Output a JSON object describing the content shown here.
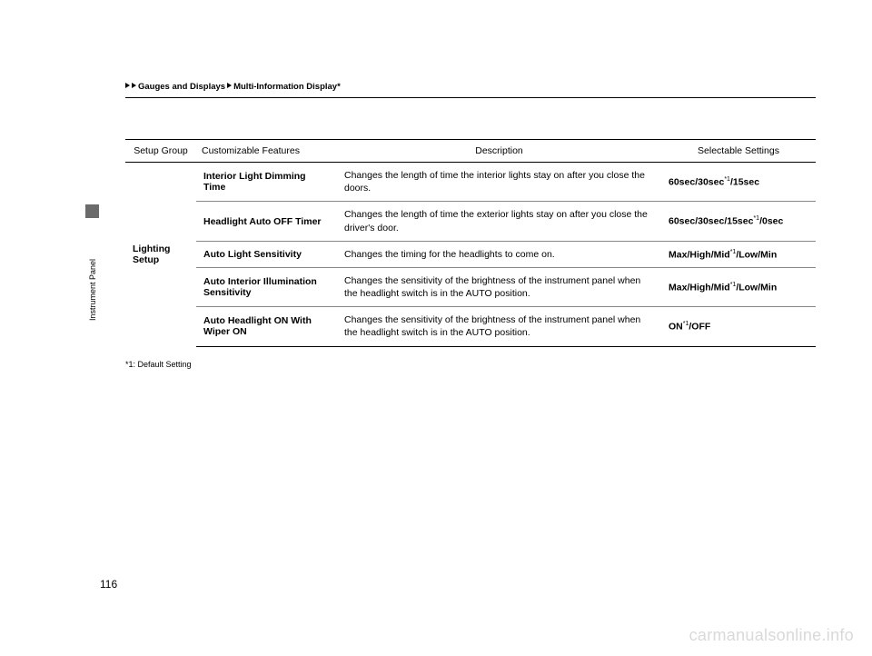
{
  "breadcrumb": {
    "part1": "Gauges and Displays",
    "part2": "Multi-Information Display",
    "star": "*"
  },
  "sideTab": {
    "label": "Instrument Panel"
  },
  "table": {
    "headers": {
      "group": "Setup Group",
      "feature": "Customizable Features",
      "description": "Description",
      "settings": "Selectable Settings"
    },
    "group": "Lighting Setup",
    "rows": [
      {
        "feature": "Interior Light Dimming Time",
        "description": "Changes the length of time the interior lights stay on after you close the doors.",
        "settings_parts": [
          "60sec",
          "/",
          "30sec",
          "*1",
          "/",
          "15sec"
        ]
      },
      {
        "feature": "Headlight Auto OFF Timer",
        "description": "Changes the length of time the exterior lights stay on after you close the driver's door.",
        "settings_parts": [
          "60sec",
          "/",
          "30sec",
          "/",
          "15sec",
          "*1",
          "/",
          "0sec"
        ]
      },
      {
        "feature": "Auto Light Sensitivity",
        "description": "Changes the timing for the headlights to come on.",
        "settings_parts": [
          "Max",
          "/",
          "High",
          "/",
          "Mid",
          "*1",
          "/",
          "Low",
          "/",
          "Min"
        ]
      },
      {
        "feature": "Auto Interior Illumination Sensitivity",
        "description": "Changes the sensitivity of the brightness of the instrument panel when the headlight switch is in the AUTO position.",
        "settings_parts": [
          "Max",
          "/",
          "High",
          "/",
          "Mid",
          "*1",
          "/",
          "Low",
          "/",
          "Min"
        ]
      },
      {
        "feature": "Auto Headlight ON With Wiper ON",
        "description": "Changes the sensitivity of the brightness of the instrument panel when the headlight switch is in the AUTO position.",
        "settings_parts": [
          "ON",
          "*1",
          "/",
          "OFF"
        ]
      }
    ]
  },
  "footnote": "*1: Default Setting",
  "pageNumber": "116",
  "watermark": "carmanualsonline.info"
}
